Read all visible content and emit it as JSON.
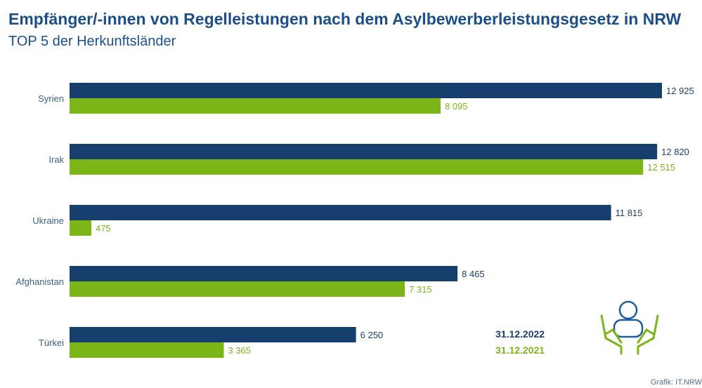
{
  "title": "Empfänger/-innen von Regelleistungen nach dem Asylbewerberleistungsgesetz in NRW",
  "subtitle": "TOP 5 der Herkunftsländer",
  "source": "Grafik: IT.NRW",
  "icon": "hands-holding-person-icon",
  "colors": {
    "series_2022": "#173f6d",
    "series_2021": "#7cb518",
    "text": "#1b4f8a"
  },
  "chart_data": {
    "type": "bar",
    "orientation": "horizontal",
    "title": "Empfänger/-innen von Regelleistungen nach dem Asylbewerberleistungsgesetz in NRW",
    "subtitle": "TOP 5 der Herkunftsländer",
    "categories": [
      "Syrien",
      "Irak",
      "Ukraine",
      "Afghanistan",
      "Türkei"
    ],
    "series": [
      {
        "name": "31.12.2022",
        "values": [
          12925,
          12820,
          11815,
          8465,
          6250
        ],
        "labels": [
          "12 925",
          "12 820",
          "11 815",
          "8 465",
          "6 250"
        ]
      },
      {
        "name": "31.12.2021",
        "values": [
          8095,
          12515,
          475,
          7315,
          3365
        ],
        "labels": [
          "8 095",
          "12 515",
          "475",
          "7 315",
          "3 365"
        ]
      }
    ],
    "xlim": [
      0,
      12925
    ],
    "grid": false,
    "legend_position": "bottom-right"
  }
}
